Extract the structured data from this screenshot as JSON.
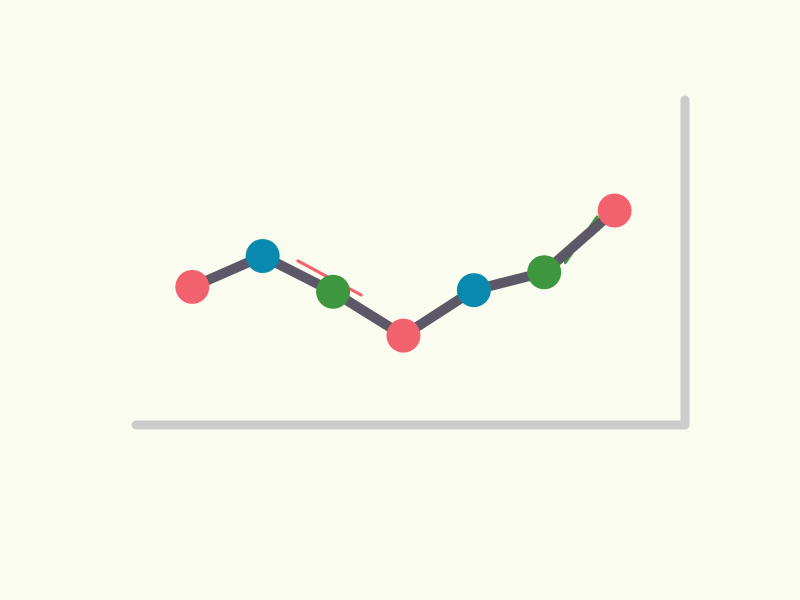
{
  "chart_data": {
    "type": "line",
    "title": "",
    "xlabel": "",
    "ylabel": "",
    "y_axis_side": "right",
    "grid": false,
    "legend": "none",
    "x": [
      1,
      2,
      3,
      4,
      5,
      6,
      7
    ],
    "series": [
      {
        "values": [
          4.5,
          6.4,
          4.2,
          1.5,
          4.3,
          5.4,
          9.2
        ],
        "line_color": "#5D5868",
        "point_colors": [
          "#F2626E",
          "#0A89AE",
          "#3E973E",
          "#F2626E",
          "#0A89AE",
          "#3E973E",
          "#F2626E"
        ]
      }
    ],
    "xlim": [
      0.2,
      8
    ],
    "ylim": [
      -4.0,
      16.0
    ],
    "annotations": [
      {
        "type": "trend-tick",
        "color": "#F2626E",
        "from": [
          2.5,
          6.1
        ],
        "to": [
          3.4,
          4.0
        ]
      },
      {
        "type": "trend-tick",
        "color": "#3E973E",
        "from": [
          6.3,
          6.0
        ],
        "to": [
          6.75,
          8.8
        ]
      }
    ],
    "axis_color": "#CCCCCC",
    "background": "#FAFCF0"
  }
}
